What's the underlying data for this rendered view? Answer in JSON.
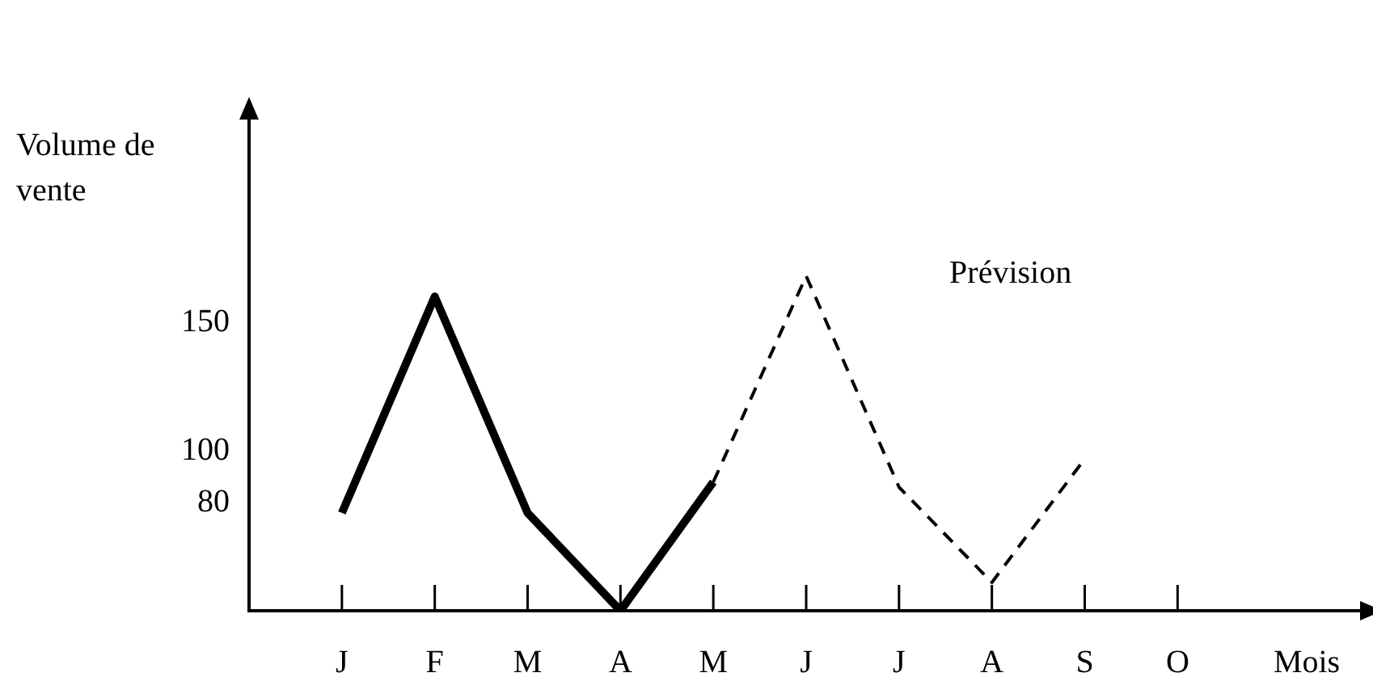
{
  "chart_data": {
    "type": "line",
    "xlabel": "Mois",
    "ylabel": "Volume de vente",
    "categories": [
      "J",
      "F",
      "M",
      "A",
      "M",
      "J",
      "J",
      "A",
      "S",
      "O"
    ],
    "series": [
      {
        "color": "#000000",
        "line_style": "solid",
        "values": [
          76,
          160,
          76,
          38,
          88,
          null,
          null,
          null,
          null,
          null
        ]
      },
      {
        "name": "Prévision",
        "color": "#000000",
        "line_style": "dashed",
        "values": [
          null,
          null,
          null,
          null,
          88,
          168,
          86,
          49,
          97,
          null
        ]
      }
    ],
    "ylim": [
      38,
      230
    ],
    "yticks": [
      80,
      100,
      150
    ],
    "grid": false,
    "legend": false,
    "marker": "none"
  }
}
